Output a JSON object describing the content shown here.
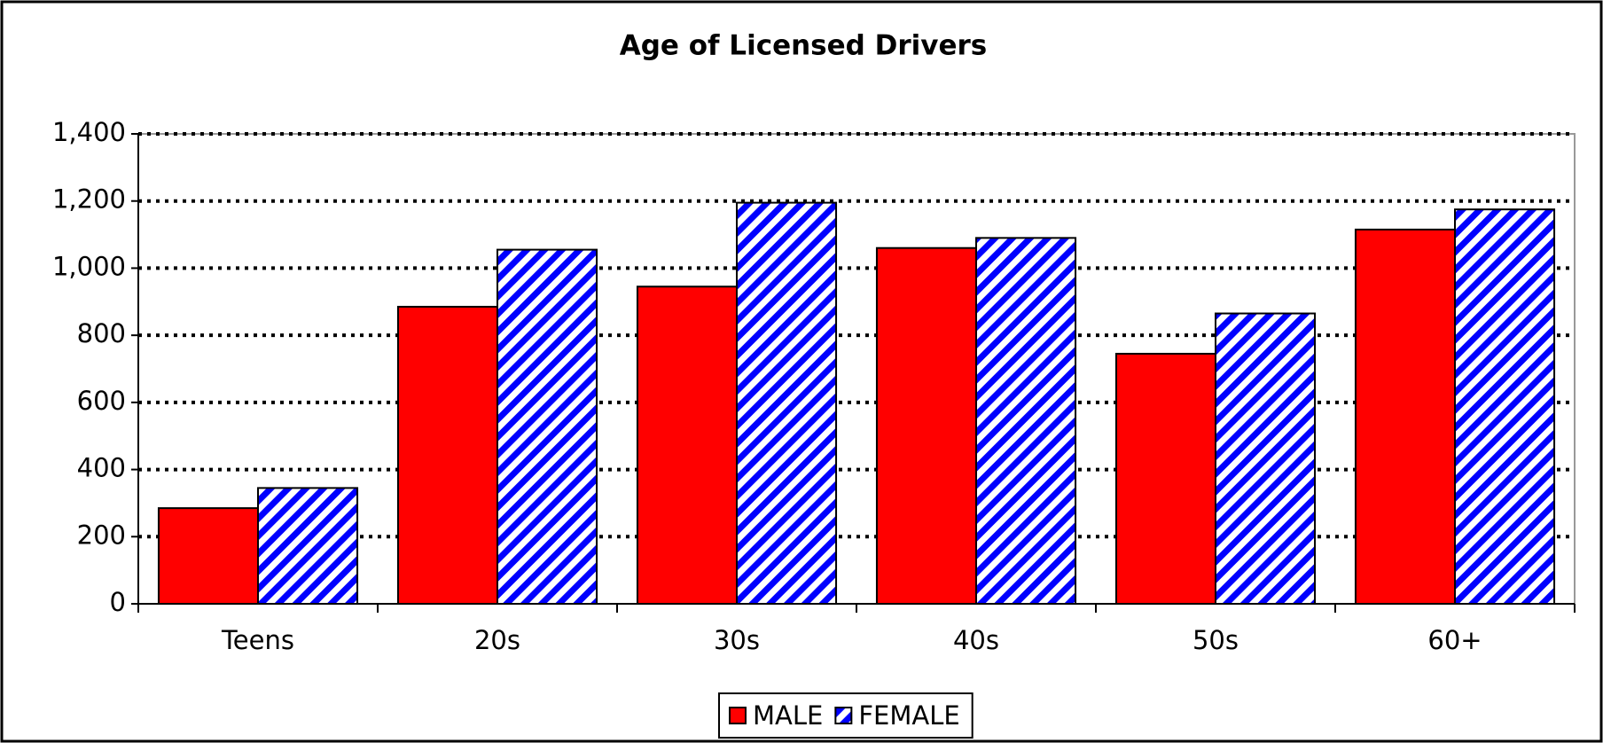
{
  "chart_data": {
    "type": "bar",
    "title": "Age of Licensed Drivers",
    "categories": [
      "Teens",
      "20s",
      "30s",
      "40s",
      "50s",
      "60+"
    ],
    "series": [
      {
        "name": "MALE",
        "color": "#ff0000",
        "values": [
          285,
          885,
          945,
          1060,
          745,
          1115
        ]
      },
      {
        "name": "FEMALE",
        "color": "#0000ff",
        "hatch": true,
        "values": [
          345,
          1055,
          1195,
          1090,
          865,
          1175
        ]
      }
    ],
    "ylim": [
      0,
      1400
    ],
    "yticks": [
      0,
      200,
      400,
      600,
      800,
      {
        "value": 1000,
        "label": "1,000"
      },
      {
        "value": 1200,
        "label": "1,200"
      },
      {
        "value": 1400,
        "label": "1,400"
      }
    ],
    "grid": true,
    "legend": "bottom"
  }
}
